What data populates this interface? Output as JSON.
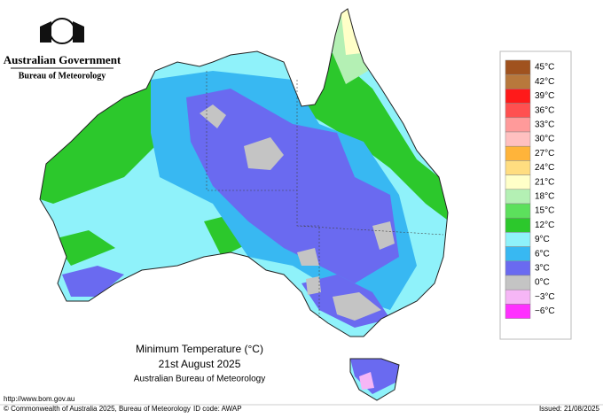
{
  "header": {
    "government": "Australian Government",
    "bureau": "Bureau of Meteorology"
  },
  "caption": {
    "title": "Minimum Temperature (°C)",
    "date": "21st August 2025",
    "source": "Australian Bureau of Meteorology"
  },
  "legend": [
    {
      "label": "45°C",
      "color": "#a0521e"
    },
    {
      "label": "42°C",
      "color": "#b8783c"
    },
    {
      "label": "39°C",
      "color": "#ff1a1a"
    },
    {
      "label": "36°C",
      "color": "#ff5050"
    },
    {
      "label": "33°C",
      "color": "#ff9a9a"
    },
    {
      "label": "30°C",
      "color": "#ffc0c0"
    },
    {
      "label": "27°C",
      "color": "#ffb43a"
    },
    {
      "label": "24°C",
      "color": "#ffdd80"
    },
    {
      "label": "21°C",
      "color": "#ffffc8"
    },
    {
      "label": "18°C",
      "color": "#b4f0b4"
    },
    {
      "label": "15°C",
      "color": "#5ce05c"
    },
    {
      "label": "12°C",
      "color": "#2cc82c"
    },
    {
      "label": "9°C",
      "color": "#8ff2fa"
    },
    {
      "label": "6°C",
      "color": "#38b8f2"
    },
    {
      "label": "3°C",
      "color": "#6a6af0"
    },
    {
      "label": "0°C",
      "color": "#c4c4c4"
    },
    {
      "label": "−3°C",
      "color": "#f6b6f6"
    },
    {
      "label": "−6°C",
      "color": "#ff30ff"
    }
  ],
  "footer": {
    "url": "http://www.bom.gov.au",
    "copyright": "© Commonwealth of Australia 2025, Bureau of Meteorology",
    "id": "ID code: AWAP",
    "issued": "Issued: 21/08/2025"
  }
}
